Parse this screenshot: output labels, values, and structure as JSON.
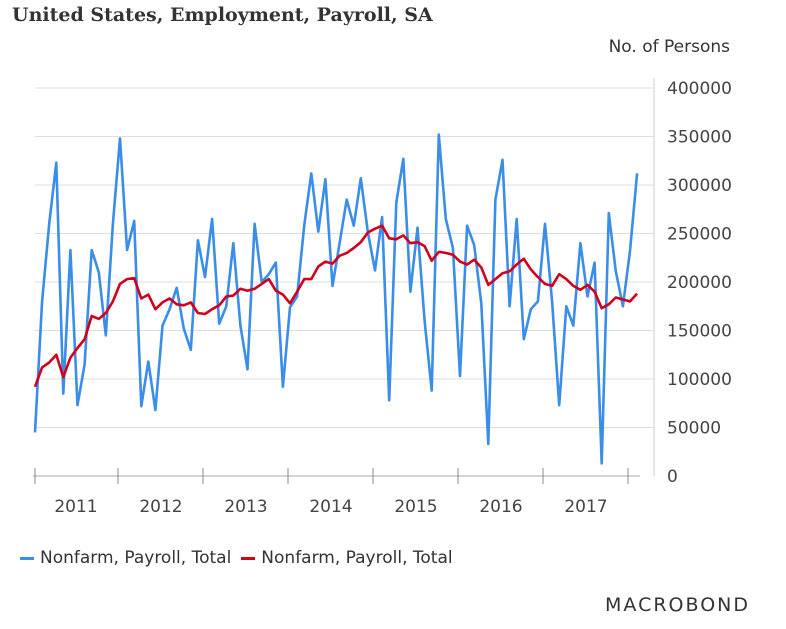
{
  "chart_data": {
    "type": "line",
    "title": "United States, Employment, Payroll, SA",
    "ylabel": "No. of Persons",
    "ylim": [
      0,
      400000
    ],
    "y_ticks": [
      "0",
      "50000",
      "100000",
      "150000",
      "200000",
      "250000",
      "300000",
      "350000",
      "400000"
    ],
    "x_tick_labels": [
      "2011",
      "2012",
      "2013",
      "2014",
      "2015",
      "2016",
      "2017"
    ],
    "x_start": "2010-05",
    "x_end": "2017-07",
    "grid": true,
    "legend_position": "bottom-left",
    "series": [
      {
        "name": "Nonfarm, Payroll, Total",
        "color": "#3a8de8",
        "values": [
          45000,
          180000,
          260000,
          323000,
          85000,
          233000,
          73000,
          115000,
          233000,
          210000,
          145000,
          260000,
          348000,
          233000,
          263000,
          72000,
          118000,
          68000,
          155000,
          172000,
          194000,
          152000,
          130000,
          243000,
          205000,
          265000,
          157000,
          175000,
          240000,
          155000,
          110000,
          260000,
          200000,
          208000,
          220000,
          92000,
          174000,
          185000,
          258000,
          312000,
          252000,
          306000,
          196000,
          240000,
          285000,
          258000,
          307000,
          251000,
          212000,
          267000,
          78000,
          282000,
          327000,
          190000,
          256000,
          160000,
          88000,
          352000,
          265000,
          235000,
          103000,
          258000,
          238000,
          178000,
          33000,
          285000,
          326000,
          175000,
          265000,
          141000,
          172000,
          180000,
          260000,
          180000,
          73000,
          175000,
          155000,
          240000,
          185000,
          220000,
          13000,
          271000,
          211000,
          175000,
          232000,
          312000
        ]
      },
      {
        "name": "Nonfarm, Payroll, Total",
        "color": "#d0021b",
        "values": [
          92000,
          112000,
          117000,
          125000,
          102000,
          122000,
          132000,
          141000,
          165000,
          162000,
          168000,
          180000,
          198000,
          203000,
          204000,
          183000,
          187000,
          172000,
          179000,
          183000,
          177000,
          176000,
          179000,
          168000,
          167000,
          172000,
          176000,
          185000,
          186000,
          193000,
          191000,
          193000,
          198000,
          203000,
          191000,
          187000,
          178000,
          190000,
          203000,
          203000,
          216000,
          221000,
          219000,
          227000,
          230000,
          235000,
          241000,
          251000,
          255000,
          258000,
          245000,
          244000,
          248000,
          240000,
          241000,
          237000,
          222000,
          231000,
          230000,
          228000,
          221000,
          218000,
          223000,
          215000,
          197000,
          203000,
          209000,
          211000,
          218000,
          224000,
          213000,
          205000,
          198000,
          196000,
          208000,
          203000,
          196000,
          192000,
          197000,
          190000,
          173000,
          177000,
          184000,
          182000,
          180000,
          188000
        ]
      }
    ]
  },
  "branding": "MACRΟBOND"
}
